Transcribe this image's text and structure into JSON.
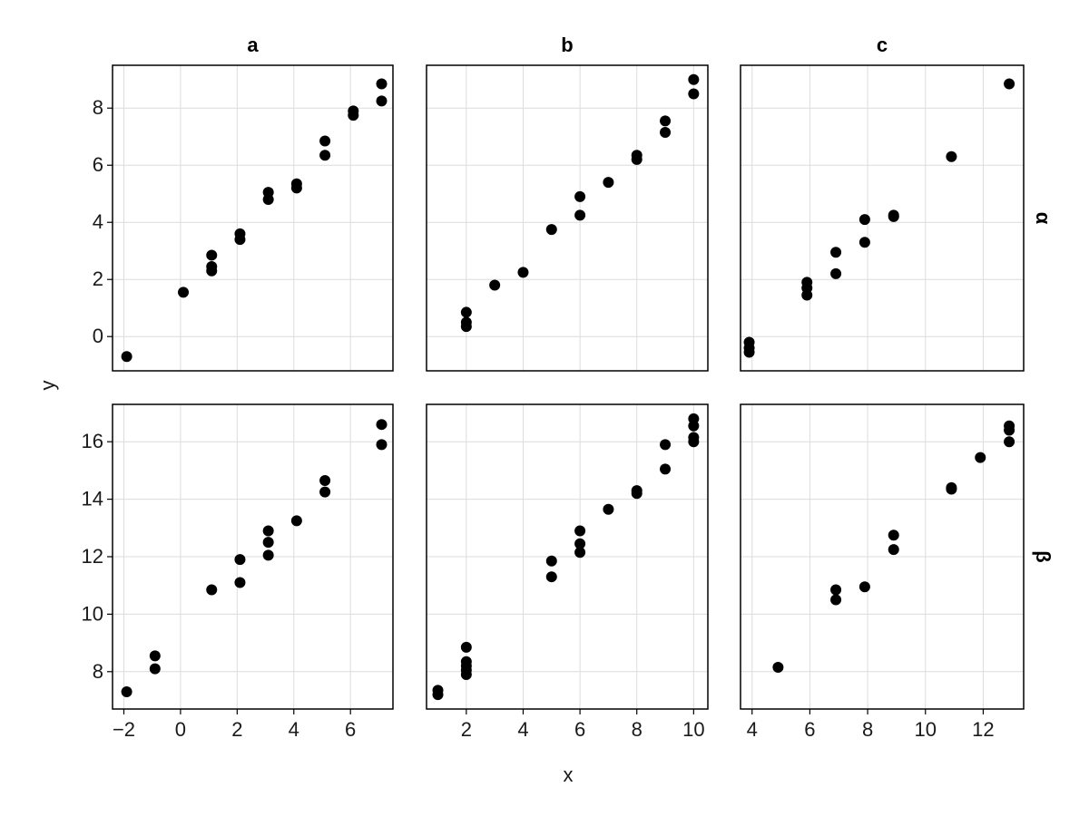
{
  "chart_data": {
    "type": "scatter",
    "xlabel": "x",
    "ylabel": "y",
    "columns": [
      "a",
      "b",
      "c"
    ],
    "rows": [
      "α",
      "β"
    ],
    "grid": true,
    "shared_x_by_column": true,
    "shared_y_by_row": true,
    "colors": {
      "points": "#000000",
      "grid": "#dcdcdc",
      "frame": "#000000"
    },
    "x_ticks": [
      [
        -2,
        0,
        2,
        4,
        6
      ],
      [
        2,
        4,
        6,
        8,
        10
      ],
      [
        4,
        6,
        8,
        10,
        12
      ]
    ],
    "y_ticks": [
      [
        0,
        2,
        4,
        6,
        8
      ],
      [
        8,
        10,
        12,
        14,
        16
      ]
    ],
    "xlim": [
      [
        -2.4,
        7.5
      ],
      [
        0.6,
        10.5
      ],
      [
        3.6,
        13.4
      ]
    ],
    "ylim": [
      [
        -1.2,
        9.5
      ],
      [
        6.7,
        17.3
      ]
    ],
    "panels": [
      {
        "row": "α",
        "col": "a",
        "points": [
          [
            -1.9,
            -0.7
          ],
          [
            0.1,
            1.55
          ],
          [
            1.1,
            2.3
          ],
          [
            1.1,
            2.45
          ],
          [
            1.1,
            2.85
          ],
          [
            2.1,
            3.4
          ],
          [
            2.1,
            3.6
          ],
          [
            3.1,
            4.8
          ],
          [
            3.1,
            5.05
          ],
          [
            4.1,
            5.2
          ],
          [
            4.1,
            5.35
          ],
          [
            5.1,
            6.35
          ],
          [
            5.1,
            6.85
          ],
          [
            6.1,
            7.75
          ],
          [
            6.1,
            7.9
          ],
          [
            7.1,
            8.25
          ],
          [
            7.1,
            8.85
          ]
        ]
      },
      {
        "row": "α",
        "col": "b",
        "points": [
          [
            2,
            0.35
          ],
          [
            2,
            0.5
          ],
          [
            2,
            0.85
          ],
          [
            3,
            1.8
          ],
          [
            4,
            2.25
          ],
          [
            5,
            3.75
          ],
          [
            6,
            4.25
          ],
          [
            6,
            4.9
          ],
          [
            7,
            5.4
          ],
          [
            8,
            6.2
          ],
          [
            8,
            6.35
          ],
          [
            9,
            7.15
          ],
          [
            9,
            7.55
          ],
          [
            10,
            8.5
          ],
          [
            10,
            9.0
          ]
        ]
      },
      {
        "row": "α",
        "col": "c",
        "points": [
          [
            3.9,
            -0.2
          ],
          [
            3.9,
            -0.4
          ],
          [
            3.9,
            -0.55
          ],
          [
            5.9,
            1.45
          ],
          [
            5.9,
            1.7
          ],
          [
            5.9,
            1.9
          ],
          [
            6.9,
            2.2
          ],
          [
            6.9,
            2.95
          ],
          [
            7.9,
            3.3
          ],
          [
            7.9,
            4.1
          ],
          [
            8.9,
            4.2
          ],
          [
            8.9,
            4.25
          ],
          [
            10.9,
            6.3
          ],
          [
            12.9,
            8.85
          ]
        ]
      },
      {
        "row": "β",
        "col": "a",
        "points": [
          [
            -1.9,
            7.3
          ],
          [
            -0.9,
            8.1
          ],
          [
            -0.9,
            8.55
          ],
          [
            1.1,
            10.85
          ],
          [
            2.1,
            11.1
          ],
          [
            2.1,
            11.9
          ],
          [
            3.1,
            12.05
          ],
          [
            3.1,
            12.5
          ],
          [
            3.1,
            12.9
          ],
          [
            4.1,
            13.25
          ],
          [
            5.1,
            14.25
          ],
          [
            5.1,
            14.65
          ],
          [
            7.1,
            15.9
          ],
          [
            7.1,
            16.6
          ]
        ]
      },
      {
        "row": "β",
        "col": "b",
        "points": [
          [
            1,
            7.2
          ],
          [
            1,
            7.35
          ],
          [
            2,
            7.9
          ],
          [
            2,
            8.05
          ],
          [
            2,
            8.2
          ],
          [
            2,
            8.35
          ],
          [
            2,
            8.85
          ],
          [
            5,
            11.3
          ],
          [
            5,
            11.85
          ],
          [
            6,
            12.15
          ],
          [
            6,
            12.45
          ],
          [
            6,
            12.9
          ],
          [
            7,
            13.65
          ],
          [
            8,
            14.2
          ],
          [
            8,
            14.3
          ],
          [
            9,
            15.05
          ],
          [
            9,
            15.9
          ],
          [
            10,
            16.0
          ],
          [
            10,
            16.15
          ],
          [
            10,
            16.55
          ],
          [
            10,
            16.8
          ]
        ]
      },
      {
        "row": "β",
        "col": "c",
        "points": [
          [
            4.9,
            8.15
          ],
          [
            6.9,
            10.5
          ],
          [
            6.9,
            10.85
          ],
          [
            7.9,
            10.95
          ],
          [
            8.9,
            12.25
          ],
          [
            8.9,
            12.75
          ],
          [
            10.9,
            14.35
          ],
          [
            10.9,
            14.4
          ],
          [
            11.9,
            15.45
          ],
          [
            12.9,
            16.0
          ],
          [
            12.9,
            16.4
          ],
          [
            12.9,
            16.55
          ]
        ]
      }
    ]
  }
}
